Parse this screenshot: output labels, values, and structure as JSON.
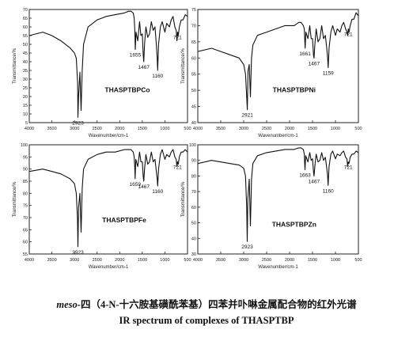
{
  "chart_data": [
    {
      "type": "line",
      "label": "THASPTBPCo",
      "xlabel": "Wavenumber/cm-1",
      "ylabel": "Transmittance/%",
      "xlim": [
        4000,
        500
      ],
      "ylim": [
        5,
        70
      ],
      "xticks": [
        4000,
        3500,
        3000,
        2500,
        2000,
        1500,
        1000,
        500
      ],
      "yticks": [
        5,
        10,
        15,
        20,
        25,
        30,
        35,
        40,
        45,
        50,
        55,
        60,
        65,
        70
      ],
      "x": [
        4000,
        3700,
        3500,
        3300,
        3100,
        3000,
        2960,
        2930,
        2923,
        2910,
        2880,
        2853,
        2830,
        2800,
        2700,
        2500,
        2300,
        2100,
        1900,
        1800,
        1750,
        1700,
        1680,
        1665,
        1655,
        1640,
        1600,
        1560,
        1530,
        1500,
        1480,
        1467,
        1450,
        1420,
        1380,
        1340,
        1300,
        1260,
        1220,
        1190,
        1170,
        1160,
        1140,
        1100,
        1060,
        1000,
        960,
        900,
        860,
        820,
        780,
        750,
        735,
        721,
        705,
        680,
        640,
        600,
        550,
        500
      ],
      "y": [
        55,
        57,
        55,
        52,
        48,
        45,
        42,
        28,
        8,
        20,
        34,
        12,
        35,
        50,
        60,
        64,
        66,
        67,
        68,
        69,
        69,
        68,
        65,
        58,
        47,
        57,
        52,
        63,
        55,
        56,
        44,
        40,
        50,
        60,
        54,
        56,
        63,
        58,
        60,
        50,
        42,
        35,
        50,
        60,
        63,
        57,
        62,
        60,
        64,
        66,
        60,
        58,
        52,
        57,
        55,
        60,
        64,
        64,
        67,
        66
      ],
      "annotations": [
        {
          "x": 2923,
          "text": "2923"
        },
        {
          "x": 1655,
          "text": "1655"
        },
        {
          "x": 1467,
          "text": "1467"
        },
        {
          "x": 1160,
          "text": "1160"
        },
        {
          "x": 721,
          "text": "721"
        }
      ]
    },
    {
      "type": "line",
      "label": "THASPTBPNi",
      "xlabel": "Wavenumber/cm-1",
      "ylabel": "Transmittance/%",
      "xlim": [
        4000,
        500
      ],
      "ylim": [
        40,
        75
      ],
      "xticks": [
        4000,
        3500,
        3000,
        2500,
        2000,
        1500,
        1000,
        500
      ],
      "yticks": [
        40,
        45,
        50,
        55,
        60,
        65,
        70,
        75
      ],
      "x": [
        4000,
        3700,
        3500,
        3300,
        3100,
        3000,
        2960,
        2935,
        2921,
        2905,
        2880,
        2853,
        2830,
        2800,
        2700,
        2500,
        2300,
        2100,
        1900,
        1800,
        1750,
        1700,
        1680,
        1670,
        1661,
        1645,
        1600,
        1560,
        1530,
        1500,
        1480,
        1467,
        1450,
        1420,
        1380,
        1340,
        1300,
        1260,
        1220,
        1190,
        1170,
        1159,
        1140,
        1100,
        1060,
        1000,
        960,
        900,
        860,
        820,
        780,
        750,
        735,
        721,
        705,
        680,
        640,
        600,
        550,
        500
      ],
      "y": [
        62,
        63,
        62,
        61,
        60,
        58,
        55,
        48,
        44,
        56,
        58,
        48,
        60,
        64,
        67,
        68,
        69,
        70,
        70,
        71,
        71,
        70,
        69,
        66,
        63,
        68,
        66,
        70,
        66,
        66,
        61,
        60,
        64,
        69,
        65,
        66,
        70,
        66,
        67,
        63,
        60,
        57,
        63,
        68,
        70,
        67,
        69,
        68,
        70,
        71,
        69,
        68,
        67,
        69,
        68,
        70,
        72,
        72,
        74,
        73
      ],
      "annotations": [
        {
          "x": 2921,
          "text": "2921"
        },
        {
          "x": 1661,
          "text": "1661"
        },
        {
          "x": 1467,
          "text": "1467"
        },
        {
          "x": 1159,
          "text": "1159"
        },
        {
          "x": 721,
          "text": "721"
        }
      ]
    },
    {
      "type": "line",
      "label": "THASPTBPFe",
      "xlabel": "Wavenumber/cm-1",
      "ylabel": "Transmittance/%",
      "xlim": [
        4000,
        500
      ],
      "ylim": [
        55,
        100
      ],
      "xticks": [
        4000,
        3500,
        3000,
        2500,
        2000,
        1500,
        1000,
        500
      ],
      "yticks": [
        55,
        60,
        65,
        70,
        75,
        80,
        85,
        90,
        95,
        100
      ],
      "x": [
        4000,
        3700,
        3500,
        3300,
        3100,
        3000,
        2960,
        2935,
        2923,
        2910,
        2880,
        2853,
        2830,
        2800,
        2700,
        2500,
        2300,
        2100,
        1900,
        1800,
        1750,
        1700,
        1680,
        1668,
        1659,
        1645,
        1600,
        1560,
        1530,
        1500,
        1480,
        1467,
        1450,
        1420,
        1380,
        1340,
        1300,
        1260,
        1220,
        1190,
        1170,
        1160,
        1140,
        1100,
        1060,
        1000,
        960,
        900,
        860,
        820,
        780,
        750,
        735,
        721,
        705,
        680,
        640,
        600,
        550,
        500
      ],
      "y": [
        89,
        90,
        89,
        88,
        86,
        84,
        80,
        70,
        58,
        74,
        80,
        64,
        82,
        90,
        94,
        96,
        97,
        97,
        98,
        98,
        98,
        97,
        95,
        91,
        86,
        94,
        91,
        97,
        93,
        93,
        87,
        85,
        90,
        96,
        92,
        93,
        97,
        93,
        94,
        89,
        86,
        83,
        90,
        96,
        98,
        94,
        96,
        95,
        97,
        98,
        95,
        94,
        91,
        93,
        92,
        95,
        97,
        97,
        98,
        97
      ],
      "annotations": [
        {
          "x": 2923,
          "text": "2923"
        },
        {
          "x": 1659,
          "text": "1659"
        },
        {
          "x": 1467,
          "text": "1467"
        },
        {
          "x": 1160,
          "text": "1160"
        },
        {
          "x": 721,
          "text": "721"
        }
      ]
    },
    {
      "type": "line",
      "label": "THASPTBPZn",
      "xlabel": "Wavenumber/cm-1",
      "ylabel": "Transmittance/%",
      "xlim": [
        4000,
        500
      ],
      "ylim": [
        30,
        100
      ],
      "xticks": [
        4000,
        3500,
        3000,
        2500,
        2000,
        1500,
        1000,
        500
      ],
      "yticks": [
        30,
        40,
        50,
        60,
        70,
        80,
        90,
        100
      ],
      "x": [
        4000,
        3700,
        3500,
        3300,
        3100,
        3000,
        2960,
        2935,
        2923,
        2910,
        2880,
        2853,
        2830,
        2800,
        2700,
        2500,
        2300,
        2100,
        1900,
        1800,
        1750,
        1700,
        1680,
        1672,
        1663,
        1648,
        1600,
        1560,
        1530,
        1500,
        1480,
        1467,
        1450,
        1420,
        1380,
        1340,
        1300,
        1260,
        1220,
        1190,
        1170,
        1160,
        1140,
        1100,
        1060,
        1000,
        960,
        900,
        860,
        820,
        780,
        750,
        735,
        721,
        705,
        680,
        640,
        600,
        550,
        500
      ],
      "y": [
        88,
        90,
        89,
        88,
        87,
        85,
        80,
        60,
        38,
        65,
        78,
        48,
        78,
        88,
        93,
        95,
        96,
        97,
        97,
        98,
        98,
        97,
        94,
        89,
        84,
        93,
        89,
        95,
        90,
        91,
        83,
        80,
        86,
        94,
        89,
        90,
        95,
        90,
        92,
        85,
        80,
        74,
        86,
        94,
        96,
        91,
        94,
        93,
        95,
        96,
        92,
        91,
        86,
        89,
        88,
        92,
        94,
        94,
        96,
        95
      ],
      "annotations": [
        {
          "x": 2923,
          "text": "2923"
        },
        {
          "x": 1663,
          "text": "1663"
        },
        {
          "x": 1467,
          "text": "1467"
        },
        {
          "x": 1160,
          "text": "1160"
        },
        {
          "x": 721,
          "text": "721"
        }
      ]
    }
  ],
  "caption": {
    "lead": "meso-",
    "cn": "四（4-N-十六胺基磺酰苯基）四苯并卟啉金属配合物的红外光谱",
    "en": "IR spectrum of complexes of THASPTBP"
  }
}
